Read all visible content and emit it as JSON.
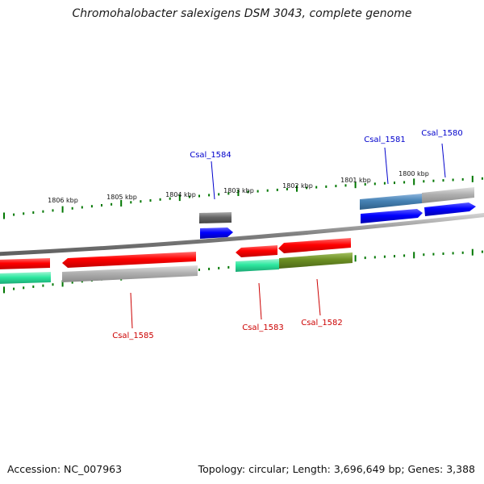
{
  "title": "Chromohalobacter salexigens DSM 3043, complete genome",
  "footer": {
    "accession": "Accession: NC_007963",
    "summary": "Topology: circular; Length: 3,696,649 bp; Genes: 3,388"
  },
  "scale_labels": [
    "1800 kbp",
    "1801 kbp",
    "1802 kbp",
    "1803 kbp",
    "1804 kbp",
    "1805 kbp",
    "1806 kbp"
  ],
  "genes": [
    {
      "id": "Csal_1580",
      "strand": "+",
      "color": "#0000cc"
    },
    {
      "id": "Csal_1581",
      "strand": "+",
      "color": "#0000cc"
    },
    {
      "id": "Csal_1582",
      "strand": "-",
      "color": "#cc0000"
    },
    {
      "id": "Csal_1583",
      "strand": "-",
      "color": "#cc0000"
    },
    {
      "id": "Csal_1584",
      "strand": "+",
      "color": "#0000cc"
    },
    {
      "id": "Csal_1585",
      "strand": "-",
      "color": "#cc0000"
    }
  ],
  "colors": {
    "forward_cds": "#0000ff",
    "reverse_cds": "#ff0000",
    "backbone": "#808080",
    "tick": "#007700",
    "cog_gray": "#a0a0a0",
    "cog_steelblue": "#4682b4",
    "cog_olive": "#6b8e23",
    "cog_mint": "#1fcf8f",
    "cog_darkgray": "#666666"
  }
}
